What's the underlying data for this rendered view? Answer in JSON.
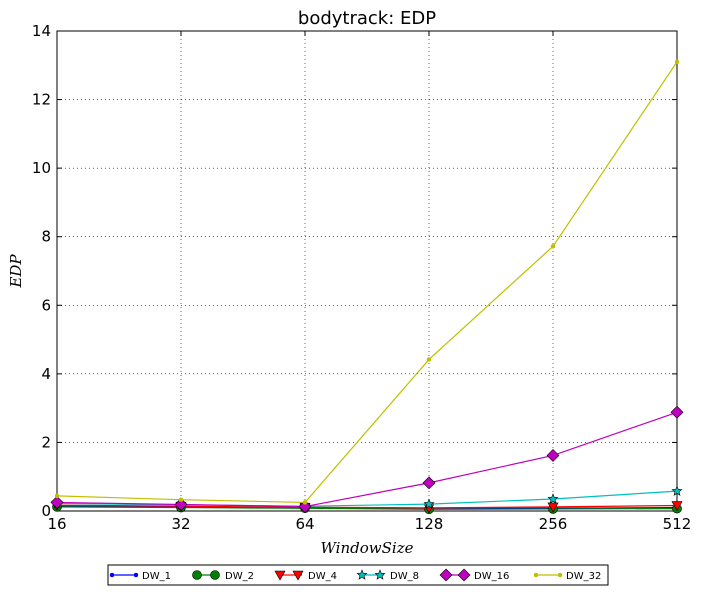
{
  "chart_data": {
    "type": "line",
    "title": "bodytrack: EDP",
    "xlabel": "WindowSize",
    "ylabel": "EDP",
    "x": [
      "16",
      "32",
      "64",
      "128",
      "256",
      "512"
    ],
    "ylim": [
      0,
      14
    ],
    "yticks": [
      "0",
      "2",
      "4",
      "6",
      "8",
      "10",
      "12",
      "14"
    ],
    "grid": true,
    "legend_position": "bottom",
    "series": [
      {
        "name": "DW_1",
        "color": "#0000ff",
        "marker": "point",
        "values": [
          0.15,
          0.12,
          0.1,
          0.08,
          0.08,
          0.1
        ]
      },
      {
        "name": "DW_2",
        "color": "#008000",
        "marker": "circle",
        "values": [
          0.12,
          0.1,
          0.08,
          0.05,
          0.06,
          0.07
        ]
      },
      {
        "name": "DW_4",
        "color": "#ff0000",
        "marker": "triangle",
        "values": [
          0.17,
          0.14,
          0.11,
          0.09,
          0.12,
          0.16
        ]
      },
      {
        "name": "DW_8",
        "color": "#00bfbf",
        "marker": "star",
        "values": [
          0.22,
          0.18,
          0.14,
          0.2,
          0.35,
          0.58
        ]
      },
      {
        "name": "DW_16",
        "color": "#bf00bf",
        "marker": "diamond",
        "values": [
          0.25,
          0.19,
          0.13,
          0.82,
          1.62,
          2.88
        ]
      },
      {
        "name": "DW_32",
        "color": "#bfbf00",
        "marker": "point",
        "values": [
          0.44,
          0.33,
          0.25,
          4.42,
          7.72,
          13.1
        ]
      }
    ]
  }
}
